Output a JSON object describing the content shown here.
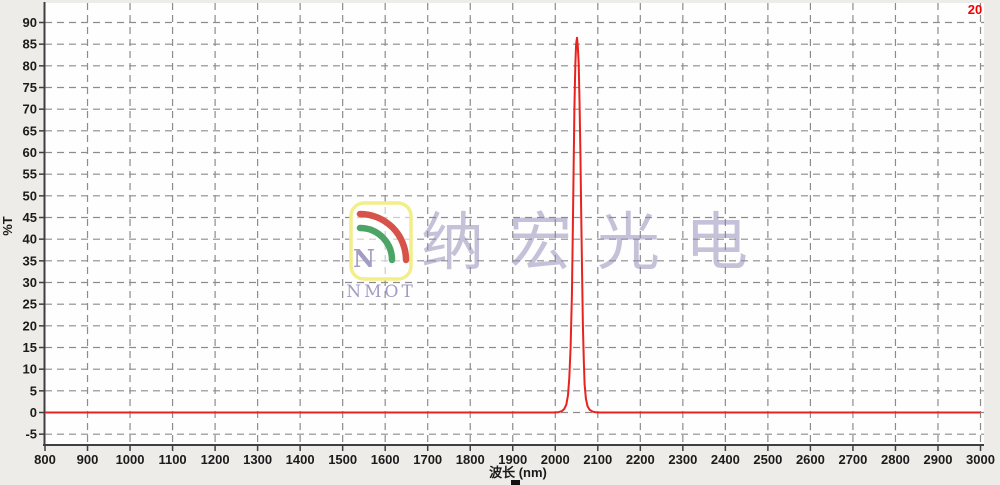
{
  "page": {
    "background_color": "#edece8",
    "plot_background_color": "#fefefe",
    "gridline_color": "#8c8c8c",
    "axis_line_color": "#3f3f3f",
    "tick_label_color": "#1b1b1b"
  },
  "corner_label": {
    "text": "20",
    "color": "#f10000"
  },
  "watermark": {
    "text": "纳宏光电",
    "logo_text": "NMOT",
    "text_color": "#8d85b5",
    "logo_border_color": "#f2ee8a",
    "logo_fill": "rgba(255,255,255,0.55)",
    "arc_red_color": "#d75349",
    "arc_green_color": "#4ca566",
    "n_letter": "N",
    "n_color": "#938bba"
  },
  "chart_data": {
    "type": "line",
    "title": "",
    "xlabel": "波长 (nm)",
    "ylabel": "%T",
    "xlim": [
      800,
      3000
    ],
    "ylim": [
      -7.5,
      94.5
    ],
    "x_ticks": [
      800,
      900,
      1000,
      1100,
      1200,
      1300,
      1400,
      1500,
      1600,
      1700,
      1800,
      1900,
      2000,
      2100,
      2200,
      2300,
      2400,
      2500,
      2600,
      2700,
      2800,
      2900,
      3000
    ],
    "y_ticks": [
      90,
      85,
      80,
      75,
      70,
      65,
      60,
      55,
      50,
      45,
      40,
      35,
      30,
      25,
      20,
      15,
      10,
      5,
      0,
      -5
    ],
    "grid": "dashed",
    "legend": "none",
    "peak": {
      "wavelength_nm": 2051,
      "transmission_pct": 86.5
    },
    "series": [
      {
        "name": "transmission",
        "color": "#e8231e",
        "points": [
          [
            800,
            0
          ],
          [
            1000,
            0
          ],
          [
            1200,
            0
          ],
          [
            1400,
            0
          ],
          [
            1600,
            0
          ],
          [
            1800,
            0
          ],
          [
            1950,
            0
          ],
          [
            2000,
            0
          ],
          [
            2008,
            0.1
          ],
          [
            2015,
            0.3
          ],
          [
            2021,
            0.8
          ],
          [
            2026,
            1.8
          ],
          [
            2030,
            4
          ],
          [
            2033,
            8
          ],
          [
            2036,
            15
          ],
          [
            2039,
            27
          ],
          [
            2041,
            40
          ],
          [
            2043,
            56
          ],
          [
            2045,
            70
          ],
          [
            2047,
            80
          ],
          [
            2049,
            85
          ],
          [
            2051,
            86.5
          ],
          [
            2053,
            84.5
          ],
          [
            2055,
            80.5
          ],
          [
            2057,
            72
          ],
          [
            2059,
            60
          ],
          [
            2061,
            46
          ],
          [
            2063,
            32
          ],
          [
            2065,
            20
          ],
          [
            2067,
            12
          ],
          [
            2069,
            6.5
          ],
          [
            2072,
            3.2
          ],
          [
            2076,
            1.4
          ],
          [
            2081,
            0.6
          ],
          [
            2088,
            0.2
          ],
          [
            2095,
            0.05
          ],
          [
            2100,
            0
          ],
          [
            2200,
            0
          ],
          [
            2400,
            0
          ],
          [
            2600,
            0
          ],
          [
            2800,
            0
          ],
          [
            3000,
            0
          ]
        ]
      }
    ]
  }
}
